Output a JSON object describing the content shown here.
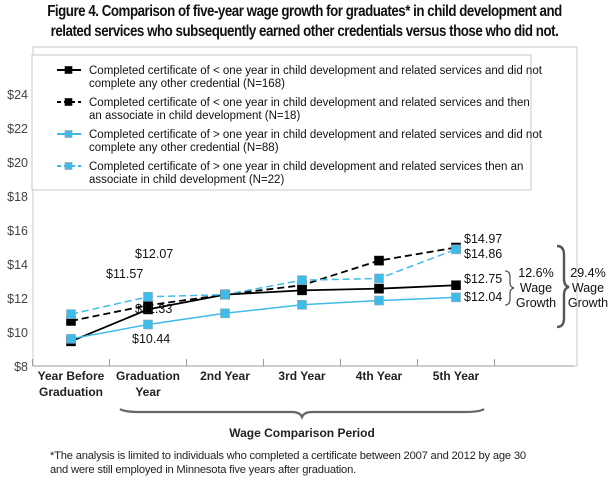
{
  "title": {
    "line1": "Figure 4. Comparison of five-year wage growth for graduates* in child development and",
    "line2": "related services who subsequently earned other credentials versus those who did not."
  },
  "chart_data": {
    "type": "line",
    "title": "Figure 4. Comparison of five-year wage growth for graduates* in child development and related services who subsequently earned other credentials versus those who did not.",
    "xlabel": "Wage Comparison Period",
    "ylabel": "",
    "categories": [
      "Year Before\nGraduation",
      "Graduation\nYear",
      "2nd Year",
      "3rd Year",
      "4th Year",
      "5th Year"
    ],
    "category_lines": [
      [
        "Year Before",
        "Graduation"
      ],
      [
        "Graduation",
        "Year"
      ],
      [
        "2nd Year"
      ],
      [
        "3rd Year"
      ],
      [
        "4th Year"
      ],
      [
        "5th Year"
      ]
    ],
    "ylim": [
      8,
      25
    ],
    "yticks": [
      8,
      10,
      12,
      14,
      16,
      18,
      20,
      22,
      24
    ],
    "ytick_labels": [
      "$8",
      "$10",
      "$12",
      "$14",
      "$16",
      "$18",
      "$20",
      "$22",
      "$24"
    ],
    "grid": false,
    "legend_position": "top",
    "series": [
      {
        "name": "Completed certificate of < one year in child development and related services and did not complete any other credential (N=168)",
        "legend_lines": [
          "Completed certificate of < one year in child development and related services and did not",
          "complete any other credential (N=168)"
        ],
        "color": "#000000",
        "style": "solid",
        "values": [
          9.45,
          11.33,
          12.2,
          12.45,
          12.55,
          12.75
        ]
      },
      {
        "name": "Completed certificate of < one year in child development and related services and then an associate in child development (N=18)",
        "legend_lines": [
          "Completed certificate of < one year in child development and related services and then",
          "an associate in child development (N=18)"
        ],
        "color": "#000000",
        "style": "dashed",
        "values": [
          10.65,
          11.57,
          12.2,
          12.75,
          14.2,
          14.97
        ]
      },
      {
        "name": "Completed certificate of > one year in child development and related services and did not complete any other credential (N=88)",
        "legend_lines": [
          "Completed certificate of  > one year in child development and related services and did not",
          "complete any other credential (N=88)"
        ],
        "color": "#3ebbe9",
        "style": "solid",
        "values": [
          9.6,
          10.44,
          11.1,
          11.6,
          11.85,
          12.04
        ]
      },
      {
        "name": "Completed certificate of > one year in child development and related services then an associate in child development (N=22)",
        "legend_lines": [
          "Completed certificate of  > one year in child development and related services then an",
          "associate in child development (N=22)"
        ],
        "color": "#3ebbe9",
        "style": "dashed",
        "values": [
          11.05,
          12.07,
          12.2,
          13.05,
          13.15,
          14.86
        ]
      }
    ],
    "data_labels": [
      {
        "text": "$11.57",
        "series": 1,
        "index": 1
      },
      {
        "text": "$12.07",
        "series": 3,
        "index": 1
      },
      {
        "text": "$11.33",
        "series": 0,
        "index": 1
      },
      {
        "text": "$10.44",
        "series": 2,
        "index": 1
      },
      {
        "text": "$14.97",
        "series": 1,
        "index": 5
      },
      {
        "text": "$14.86",
        "series": 3,
        "index": 5
      },
      {
        "text": "$12.75",
        "series": 0,
        "index": 5
      },
      {
        "text": "$12.04",
        "series": 2,
        "index": 5
      }
    ],
    "annotations": [
      {
        "lines": [
          "12.6%",
          "Wage",
          "Growth"
        ],
        "refers_to": "Completed certificate without other credential"
      },
      {
        "lines": [
          "29.4%",
          "Wage",
          "Growth"
        ],
        "refers_to": "Completed certificate then associate"
      }
    ]
  },
  "footnote": {
    "line1": "*The analysis is limited to individuals who completed a certificate between 2007 and 2012 by age 30",
    "line2": "and were still employed in Minnesota five years after graduation."
  }
}
